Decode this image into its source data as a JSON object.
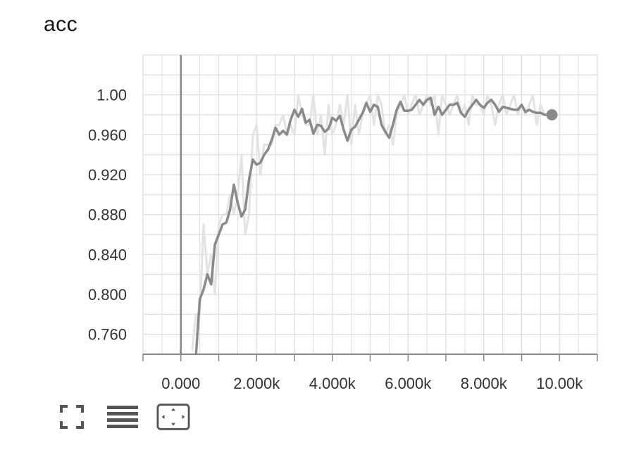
{
  "chart_data": {
    "type": "line",
    "title": "acc",
    "xlabel": "",
    "ylabel": "",
    "xlim": [
      -1000,
      11000
    ],
    "ylim": [
      0.74,
      1.04
    ],
    "x_ticks": [
      0,
      2000,
      4000,
      6000,
      8000,
      10000
    ],
    "x_tick_labels": [
      "0.000",
      "2.000k",
      "4.000k",
      "6.000k",
      "8.000k",
      "10.00k"
    ],
    "y_ticks": [
      0.76,
      0.8,
      0.84,
      0.88,
      0.92,
      0.96,
      1.0
    ],
    "y_tick_labels": [
      "0.760",
      "0.800",
      "0.840",
      "0.880",
      "0.920",
      "0.960",
      "1.00"
    ],
    "grid": true,
    "colors": {
      "smoothed": "#8a8a8a",
      "raw": "#e3e3e3",
      "axis": "#888888",
      "grid": "#dddddd"
    },
    "series": [
      {
        "role": "raw",
        "x": [
          300,
          400,
          500,
          600,
          700,
          800,
          900,
          1000,
          1100,
          1200,
          1300,
          1400,
          1500,
          1600,
          1700,
          1800,
          1900,
          2000,
          2100,
          2200,
          2300,
          2400,
          2500,
          2600,
          2700,
          2800,
          2900,
          3000,
          3100,
          3200,
          3300,
          3400,
          3500,
          3600,
          3700,
          3800,
          3900,
          4000,
          4100,
          4200,
          4300,
          4400,
          4500,
          4600,
          4700,
          4800,
          4900,
          5000,
          5100,
          5200,
          5300,
          5400,
          5500,
          5600,
          5700,
          5800,
          5900,
          6000,
          6100,
          6200,
          6300,
          6400,
          6500,
          6600,
          6700,
          6800,
          6900,
          7000,
          7100,
          7200,
          7300,
          7400,
          7500,
          7600,
          7700,
          7800,
          7900,
          8000,
          8100,
          8200,
          8300,
          8400,
          8500,
          8600,
          8700,
          8800,
          8900,
          9000,
          9100,
          9200,
          9300,
          9400,
          9500,
          9600,
          9700,
          9800
        ],
        "values": [
          0.745,
          0.78,
          0.78,
          0.87,
          0.82,
          0.84,
          0.8,
          0.87,
          0.88,
          0.88,
          0.9,
          0.88,
          0.9,
          0.94,
          0.86,
          0.88,
          0.96,
          0.97,
          0.92,
          0.95,
          0.95,
          0.95,
          0.97,
          0.97,
          0.98,
          0.96,
          0.97,
          0.96,
          1.0,
          0.98,
          0.97,
          0.97,
          1.0,
          0.96,
          0.98,
          0.94,
          0.99,
          0.96,
          0.97,
          0.99,
          0.97,
          1.0,
          0.95,
          0.99,
          0.96,
          0.98,
          0.99,
          1.0,
          0.97,
          1.0,
          0.99,
          0.96,
          0.97,
          0.95,
          0.98,
          0.99,
          1.0,
          0.98,
          0.99,
          1.0,
          0.98,
          0.99,
          1.0,
          0.99,
          1.0,
          0.96,
          1.0,
          0.99,
          0.98,
          0.99,
          1.0,
          0.98,
          0.99,
          0.97,
          1.0,
          0.99,
          0.99,
          0.98,
          1.0,
          0.99,
          0.97,
          0.99,
          1.0,
          0.98,
          0.99,
          1.0,
          0.98,
          0.99,
          0.98,
          0.99,
          1.0,
          0.97,
          0.99,
          0.98,
          0.98,
          0.98
        ]
      },
      {
        "role": "smoothed",
        "x": [
          400,
          500,
          600,
          700,
          800,
          900,
          1000,
          1100,
          1200,
          1300,
          1400,
          1500,
          1600,
          1700,
          1800,
          1900,
          2000,
          2100,
          2200,
          2300,
          2400,
          2500,
          2600,
          2700,
          2800,
          2900,
          3000,
          3100,
          3200,
          3300,
          3400,
          3500,
          3600,
          3700,
          3800,
          3900,
          4000,
          4100,
          4200,
          4300,
          4400,
          4500,
          4600,
          4700,
          4800,
          4900,
          5000,
          5100,
          5200,
          5300,
          5400,
          5500,
          5600,
          5700,
          5800,
          5900,
          6000,
          6100,
          6200,
          6300,
          6400,
          6500,
          6600,
          6700,
          6800,
          6900,
          7000,
          7100,
          7200,
          7300,
          7400,
          7500,
          7600,
          7700,
          7800,
          7900,
          8000,
          8100,
          8200,
          8300,
          8400,
          8500,
          8600,
          8700,
          8800,
          8900,
          9000,
          9100,
          9200,
          9300,
          9400,
          9500,
          9600,
          9700,
          9800
        ],
        "values": [
          0.74,
          0.795,
          0.805,
          0.82,
          0.81,
          0.85,
          0.86,
          0.87,
          0.872,
          0.885,
          0.91,
          0.892,
          0.878,
          0.885,
          0.915,
          0.935,
          0.93,
          0.932,
          0.94,
          0.945,
          0.955,
          0.967,
          0.96,
          0.964,
          0.96,
          0.975,
          0.985,
          0.978,
          0.986,
          0.972,
          0.975,
          0.961,
          0.97,
          0.969,
          0.963,
          0.966,
          0.977,
          0.974,
          0.979,
          0.965,
          0.954,
          0.965,
          0.968,
          0.975,
          0.982,
          0.992,
          0.983,
          0.99,
          0.988,
          0.97,
          0.963,
          0.957,
          0.97,
          0.985,
          0.993,
          0.984,
          0.984,
          0.985,
          0.99,
          0.995,
          0.99,
          0.995,
          0.997,
          0.98,
          0.988,
          0.98,
          0.985,
          0.99,
          0.99,
          0.992,
          0.982,
          0.978,
          0.985,
          0.99,
          0.995,
          0.99,
          0.987,
          0.992,
          0.995,
          0.99,
          0.983,
          0.988,
          0.987,
          0.986,
          0.985,
          0.985,
          0.99,
          0.983,
          0.985,
          0.983,
          0.982,
          0.982,
          0.98,
          0.98,
          0.98
        ]
      }
    ]
  },
  "toolbar": {
    "icons": [
      "fullscreen-icon",
      "toggle-y-log-icon",
      "fit-domain-icon"
    ]
  }
}
